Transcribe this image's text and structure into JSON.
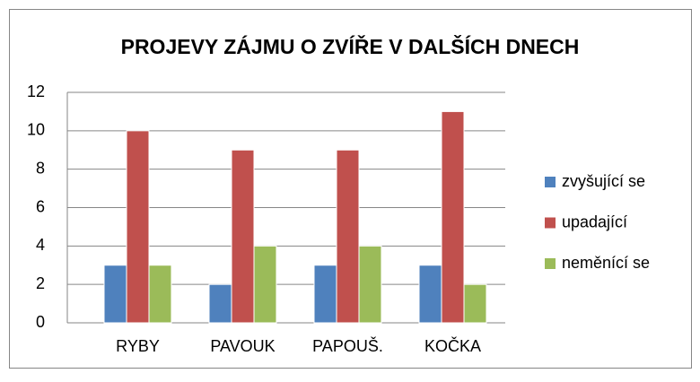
{
  "chart_data": {
    "type": "bar",
    "title": "PROJEVY ZÁJMU O ZVÍŘE V DALŠÍCH DNECH",
    "categories": [
      "RYBY",
      "PAVOUK",
      "PAPOUŠ.",
      "KOČKA"
    ],
    "series": [
      {
        "name": "zvyšující se",
        "color": "#4f81bd",
        "values": [
          3,
          2,
          3,
          3
        ]
      },
      {
        "name": "upadající",
        "color": "#c0504d",
        "values": [
          10,
          9,
          9,
          11
        ]
      },
      {
        "name": "neměnící se",
        "color": "#9bbb59",
        "values": [
          3,
          4,
          4,
          2
        ]
      }
    ],
    "ylim": [
      0,
      12
    ],
    "yticks": [
      0,
      2,
      4,
      6,
      8,
      10,
      12
    ],
    "grid": true,
    "legend": "right"
  }
}
